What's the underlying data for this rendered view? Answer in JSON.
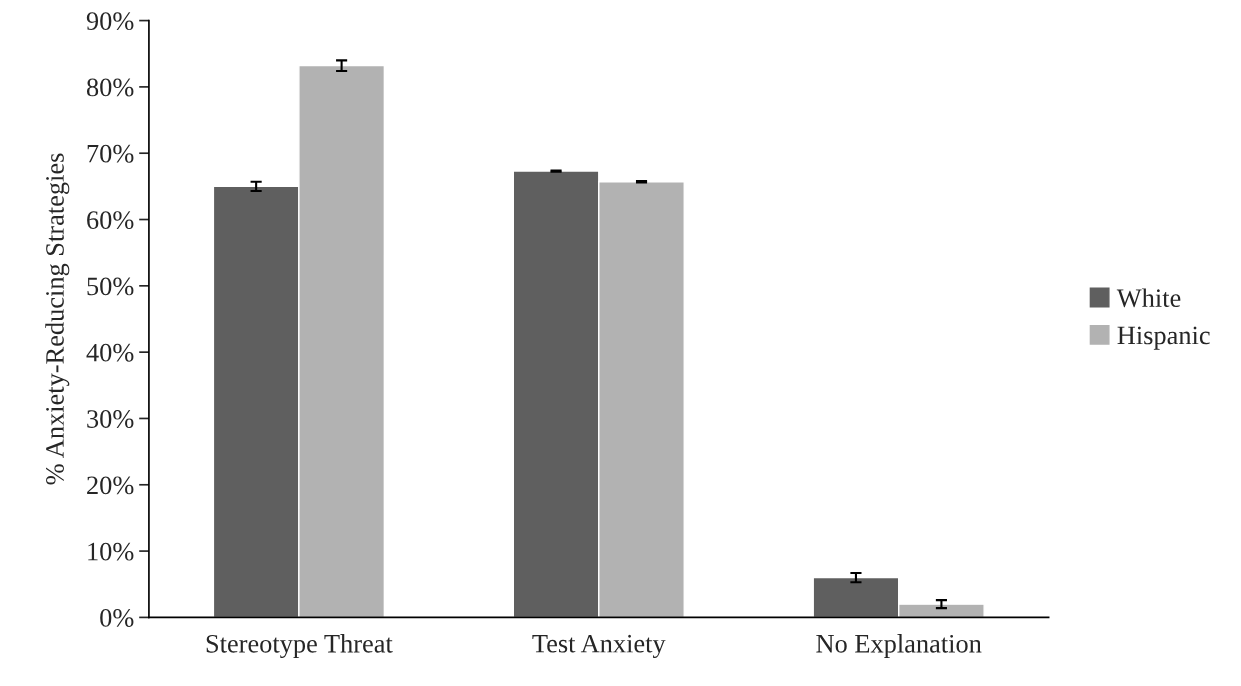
{
  "chart_data": {
    "type": "bar",
    "ylabel": "% Anxiety-Reducing Strategies",
    "categories": [
      "Stereotype Threat",
      "Test Anxiety",
      "No Explanation"
    ],
    "series": [
      {
        "name": "White",
        "color": "#5f5f5f",
        "values": [
          65.0,
          67.3,
          6.0
        ],
        "errors": [
          0.7,
          0.1,
          0.7
        ]
      },
      {
        "name": "Hispanic",
        "color": "#b2b2b2",
        "values": [
          83.2,
          65.7,
          2.0
        ],
        "errors": [
          0.8,
          0.1,
          0.6
        ]
      }
    ],
    "ylim": [
      0,
      90
    ],
    "yticks": [
      {
        "value": 0,
        "label": "0%"
      },
      {
        "value": 10,
        "label": "10%"
      },
      {
        "value": 20,
        "label": "20%"
      },
      {
        "value": 30,
        "label": "30%"
      },
      {
        "value": 40,
        "label": "40%"
      },
      {
        "value": 50,
        "label": "50%"
      },
      {
        "value": 60,
        "label": "60%"
      },
      {
        "value": 70,
        "label": "70%"
      },
      {
        "value": 80,
        "label": "80%"
      },
      {
        "value": 90,
        "label": "90%"
      }
    ],
    "grid": false,
    "legend": "right"
  }
}
